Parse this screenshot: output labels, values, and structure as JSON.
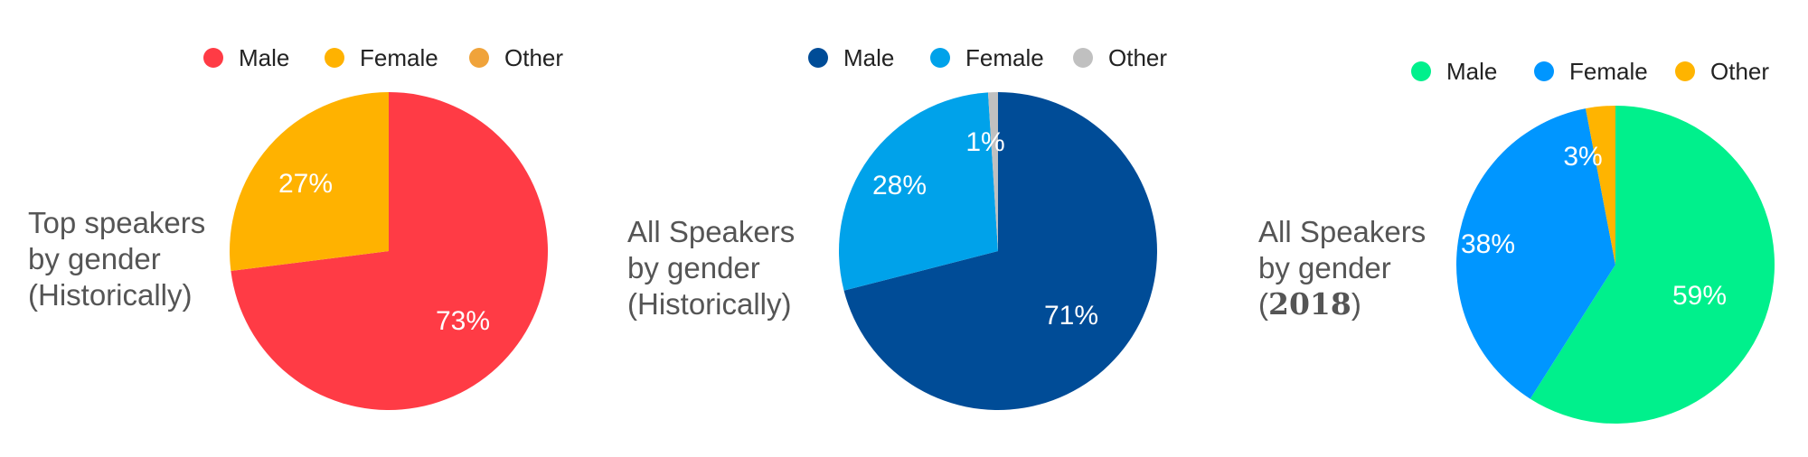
{
  "chart_data": [
    {
      "type": "pie",
      "title_lines": [
        "Top speakers",
        "by gender",
        "(Historically)"
      ],
      "categories": [
        "Male",
        "Female",
        "Other"
      ],
      "values": [
        73,
        27,
        0
      ],
      "data_labels": [
        "73%",
        "27%",
        ""
      ],
      "colors": [
        "#ff3b45",
        "#ffb200",
        "#f0a33a"
      ],
      "legend_position": "top"
    },
    {
      "type": "pie",
      "title_lines": [
        "All Speakers",
        "by gender",
        "(Historically)"
      ],
      "categories": [
        "Male",
        "Female",
        "Other"
      ],
      "values": [
        71,
        28,
        1
      ],
      "data_labels": [
        "71%",
        "28%",
        "1%"
      ],
      "colors": [
        "#004c97",
        "#00a2ea",
        "#c0c0c0"
      ],
      "legend_position": "top"
    },
    {
      "type": "pie",
      "title_lines": [
        "All Speakers",
        "by gender",
        "(2018)"
      ],
      "categories": [
        "Male",
        "Female",
        "Other"
      ],
      "values": [
        59,
        38,
        3
      ],
      "data_labels": [
        "59%",
        "38%",
        "3%"
      ],
      "colors": [
        "#00f08c",
        "#0096ff",
        "#ffb400"
      ],
      "legend_position": "top"
    }
  ]
}
